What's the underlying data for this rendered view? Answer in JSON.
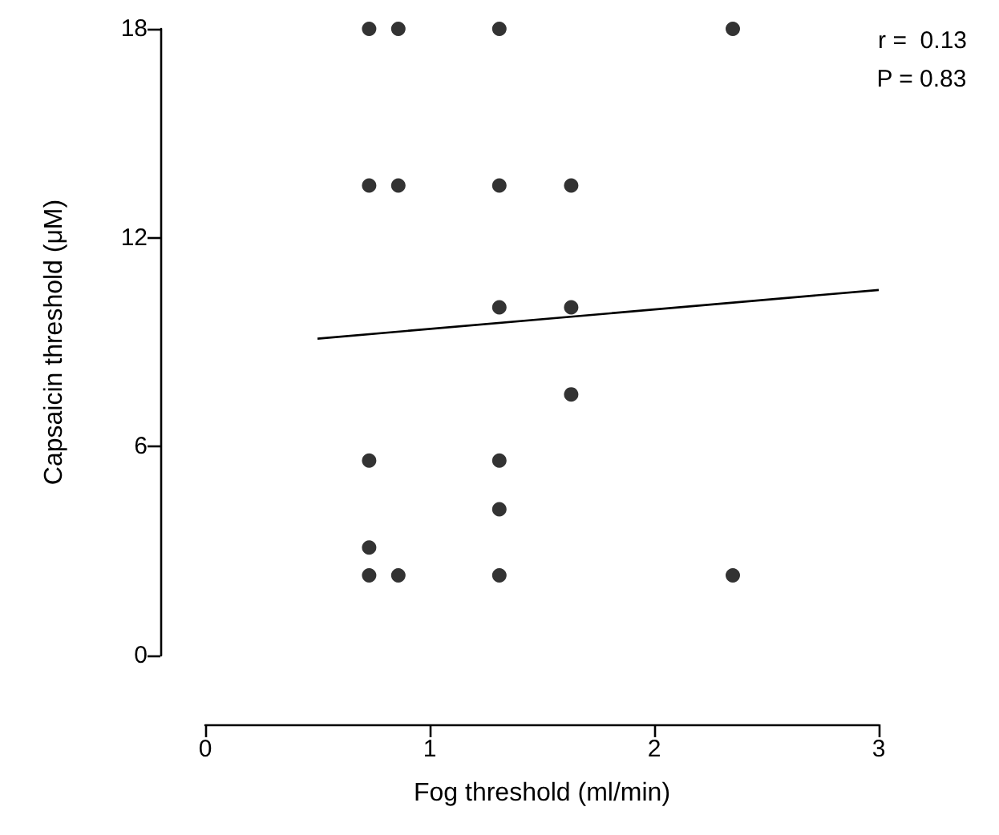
{
  "chart_data": {
    "type": "scatter",
    "xlabel": "Fog threshold (ml/min)",
    "ylabel": "Capsaicin threshold (μM)",
    "xlim": [
      0,
      3
    ],
    "xticks": [
      0,
      1,
      2,
      3
    ],
    "ylim": [
      0,
      18
    ],
    "yticks": [
      0,
      6,
      12,
      18
    ],
    "grid": false,
    "marker": "circle",
    "annotations": [
      "r =  0.13",
      "P = 0.83"
    ],
    "series": [
      {
        "color": "#000000",
        "x": [
          0.73,
          0.86,
          1.31,
          2.35,
          0.73,
          0.86,
          1.31,
          1.63,
          1.31,
          1.63,
          1.63,
          0.73,
          1.31,
          1.31,
          0.73,
          0.73,
          0.86,
          1.31,
          2.35
        ],
        "values": [
          18,
          18,
          18,
          18,
          13.5,
          13.5,
          13.5,
          13.5,
          10,
          10,
          7.5,
          5.6,
          5.6,
          4.2,
          3.1,
          2.3,
          2.3,
          2.3,
          2.3
        ]
      },
      {
        "type": "line",
        "color": "#000000",
        "line_style": "solid",
        "marker": "none",
        "x": [
          0.5,
          3
        ],
        "values": [
          9.1,
          10.5
        ]
      }
    ]
  }
}
